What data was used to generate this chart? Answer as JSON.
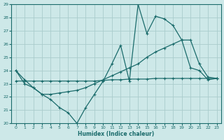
{
  "xlabel": "Humidex (Indice chaleur)",
  "background_color": "#cde8e8",
  "grid_color": "#aacccc",
  "line_color": "#1a6b6b",
  "xlim": [
    -0.5,
    23.5
  ],
  "ylim": [
    20,
    29
  ],
  "yticks": [
    20,
    21,
    22,
    23,
    24,
    25,
    26,
    27,
    28,
    29
  ],
  "xticks": [
    0,
    1,
    2,
    3,
    4,
    5,
    6,
    7,
    8,
    9,
    10,
    11,
    12,
    13,
    14,
    15,
    16,
    17,
    18,
    19,
    20,
    21,
    22,
    23
  ],
  "line1_x": [
    0,
    1,
    2,
    3,
    4,
    5,
    6,
    7,
    8,
    9,
    10,
    11,
    12,
    13,
    14,
    15,
    16,
    17,
    18,
    19,
    20,
    21,
    22,
    23
  ],
  "line1_y": [
    24.0,
    23.3,
    22.7,
    22.2,
    21.8,
    21.2,
    20.8,
    20.0,
    21.2,
    22.2,
    23.2,
    24.5,
    25.9,
    23.2,
    29.0,
    26.8,
    28.1,
    27.9,
    27.4,
    26.3,
    24.2,
    24.0,
    23.3,
    23.4
  ],
  "line2_x": [
    0,
    1,
    2,
    3,
    4,
    5,
    6,
    7,
    8,
    9,
    10,
    11,
    12,
    13,
    14,
    15,
    16,
    17,
    18,
    19,
    20,
    21,
    22,
    23
  ],
  "line2_y": [
    24.0,
    23.0,
    22.7,
    22.2,
    22.2,
    22.3,
    22.4,
    22.5,
    22.7,
    23.0,
    23.3,
    23.6,
    23.9,
    24.2,
    24.5,
    25.0,
    25.4,
    25.7,
    26.0,
    26.3,
    26.3,
    24.5,
    23.5,
    23.4
  ],
  "line3_x": [
    0,
    1,
    2,
    3,
    4,
    5,
    6,
    7,
    8,
    9,
    10,
    11,
    12,
    13,
    14,
    15,
    16,
    17,
    18,
    19,
    20,
    21,
    22,
    23
  ],
  "line3_y": [
    23.2,
    23.2,
    23.2,
    23.2,
    23.2,
    23.2,
    23.2,
    23.2,
    23.2,
    23.2,
    23.25,
    23.3,
    23.3,
    23.35,
    23.35,
    23.35,
    23.4,
    23.4,
    23.4,
    23.4,
    23.4,
    23.4,
    23.4,
    23.4
  ]
}
